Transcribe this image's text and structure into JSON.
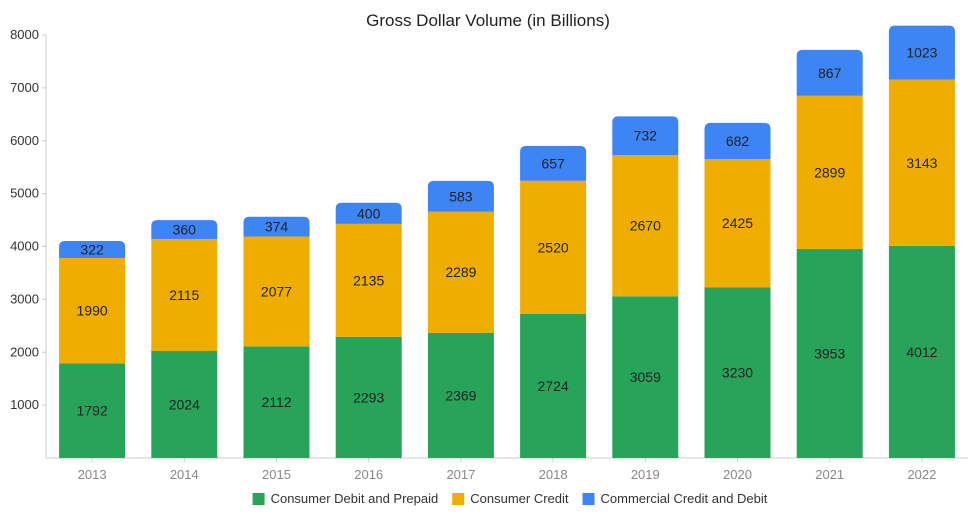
{
  "chart_data": {
    "type": "bar",
    "stacked": true,
    "title": "Gross Dollar Volume (in Billions)",
    "xlabel": "",
    "ylabel": "",
    "ylim": [
      0,
      8000
    ],
    "yticks": [
      1000,
      2000,
      3000,
      4000,
      5000,
      6000,
      7000,
      8000
    ],
    "grid": false,
    "legend_position": "bottom",
    "categories": [
      "2013",
      "2014",
      "2015",
      "2016",
      "2017",
      "2018",
      "2019",
      "2020",
      "2021",
      "2022"
    ],
    "series": [
      {
        "name": "Consumer Debit and Prepaid",
        "color": "#27a35a",
        "values": [
          1792,
          2024,
          2112,
          2293,
          2369,
          2724,
          3059,
          3230,
          3953,
          4012
        ]
      },
      {
        "name": "Consumer Credit",
        "color": "#efad00",
        "values": [
          1990,
          2115,
          2077,
          2135,
          2289,
          2520,
          2670,
          2425,
          2899,
          3143
        ]
      },
      {
        "name": "Commercial Credit and Debit",
        "color": "#3d85f5",
        "values": [
          322,
          360,
          374,
          400,
          583,
          657,
          732,
          682,
          867,
          1023
        ]
      }
    ]
  }
}
